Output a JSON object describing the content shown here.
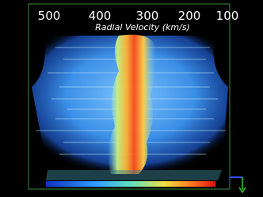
{
  "axis": {
    "label": "Radial Velocity (km/s)",
    "ticks": [
      500,
      400,
      300,
      200,
      100
    ]
  }
}
